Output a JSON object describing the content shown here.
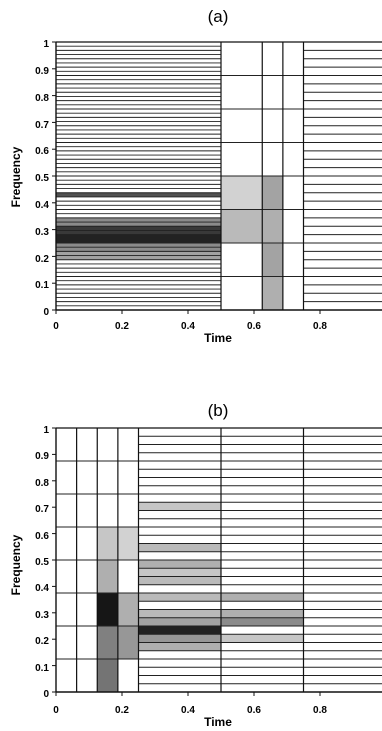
{
  "panels": [
    {
      "title": "(a)",
      "xlabel": "Time",
      "ylabel": "Frequency",
      "xticks": [
        "0",
        "0.2",
        "0.4",
        "0.6",
        "0.8"
      ],
      "yticks": [
        "0",
        "0.1",
        "0.2",
        "0.3",
        "0.4",
        "0.5",
        "0.6",
        "0.7",
        "0.8",
        "0.9",
        "1"
      ]
    },
    {
      "title": "(b)",
      "xlabel": "Time",
      "ylabel": "Frequency",
      "xticks": [
        "0",
        "0.2",
        "0.4",
        "0.6",
        "0.8"
      ],
      "yticks": [
        "0",
        "0.1",
        "0.2",
        "0.3",
        "0.4",
        "0.5",
        "0.6",
        "0.7",
        "0.8",
        "0.9",
        "1"
      ]
    }
  ],
  "tiling": [
    {
      "panel": "(a)",
      "segments": [
        {
          "t": [
            0,
            0.5
          ],
          "df": 0.015625,
          "shaded": [
            [
              0.1875,
              0.21875,
              0.35
            ],
            [
              0.21875,
              0.25,
              0.45
            ],
            [
              0.25,
              0.28125,
              0.9
            ],
            [
              0.28125,
              0.3125,
              0.8
            ],
            [
              0.3125,
              0.34375,
              0.45
            ],
            [
              0.421875,
              0.4375,
              0.7
            ]
          ]
        },
        {
          "t": [
            0.5,
            0.625
          ],
          "df": 0.125,
          "shaded": [
            [
              0.25,
              0.375,
              0.25
            ],
            [
              0.375,
              0.5,
              0.15
            ]
          ]
        },
        {
          "t": [
            0.625,
            0.6875
          ],
          "df": 0.125,
          "shaded": [
            [
              0.0,
              0.125,
              0.3
            ],
            [
              0.125,
              0.25,
              0.35
            ],
            [
              0.25,
              0.375,
              0.3
            ],
            [
              0.375,
              0.5,
              0.35
            ]
          ]
        },
        {
          "t": [
            0.6875,
            0.75
          ],
          "df": 0.125,
          "shaded": []
        },
        {
          "t": [
            0.75,
            1.0
          ],
          "df": 0.03125,
          "shaded": []
        }
      ]
    },
    {
      "panel": "(b)",
      "segments": [
        {
          "t": [
            0,
            0.0625
          ],
          "df": 0.125,
          "shaded": []
        },
        {
          "t": [
            0.0625,
            0.125
          ],
          "df": 0.125,
          "shaded": []
        },
        {
          "t": [
            0.125,
            0.1875
          ],
          "df": 0.125,
          "shaded": [
            [
              0.0,
              0.125,
              0.55
            ],
            [
              0.125,
              0.25,
              0.5
            ],
            [
              0.25,
              0.375,
              0.95
            ],
            [
              0.375,
              0.5,
              0.3
            ],
            [
              0.5,
              0.625,
              0.2
            ]
          ]
        },
        {
          "t": [
            0.1875,
            0.25
          ],
          "df": 0.125,
          "shaded": [
            [
              0.125,
              0.25,
              0.4
            ],
            [
              0.25,
              0.375,
              0.3
            ],
            [
              0.5,
              0.625,
              0.15
            ]
          ]
        },
        {
          "t": [
            0.25,
            0.5
          ],
          "df": 0.03125,
          "shaded": [
            [
              0.15625,
              0.1875,
              0.3
            ],
            [
              0.1875,
              0.21875,
              0.4
            ],
            [
              0.21875,
              0.25,
              0.9
            ],
            [
              0.25,
              0.28125,
              0.35
            ],
            [
              0.28125,
              0.3125,
              0.25
            ],
            [
              0.34375,
              0.375,
              0.25
            ],
            [
              0.40625,
              0.4375,
              0.25
            ],
            [
              0.4375,
              0.46875,
              0.2
            ],
            [
              0.46875,
              0.5,
              0.3
            ],
            [
              0.53125,
              0.5625,
              0.25
            ],
            [
              0.6875,
              0.71875,
              0.2
            ]
          ]
        },
        {
          "t": [
            0.5,
            0.75
          ],
          "df": 0.03125,
          "shaded": [
            [
              0.1875,
              0.21875,
              0.2
            ],
            [
              0.25,
              0.28125,
              0.45
            ],
            [
              0.28125,
              0.3125,
              0.3
            ],
            [
              0.34375,
              0.375,
              0.3
            ]
          ]
        },
        {
          "t": [
            0.75,
            1.0
          ],
          "df": 0.03125,
          "shaded": []
        }
      ]
    }
  ]
}
